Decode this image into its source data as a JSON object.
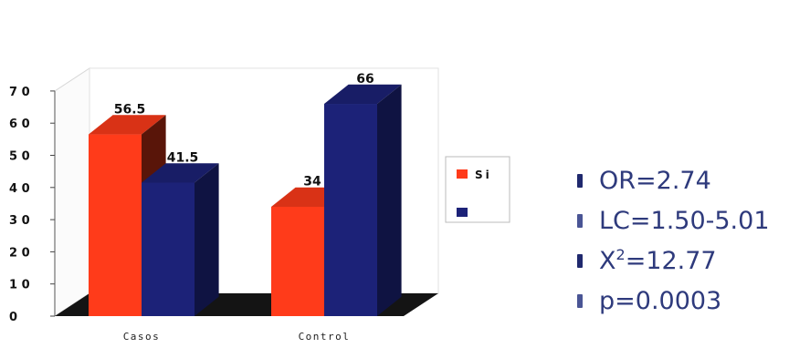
{
  "chart_data": {
    "type": "bar",
    "categories": [
      "Casos",
      "Control"
    ],
    "category_labels": [
      "Casos",
      "Control"
    ],
    "series": [
      {
        "name": "Si",
        "color": "#ff3b1a",
        "values": [
          56.5,
          34
        ]
      },
      {
        "name": "",
        "color": "#1c2278",
        "values": [
          41.5,
          66
        ]
      }
    ],
    "data_labels": [
      [
        "56.5",
        "34"
      ],
      [
        "41.5",
        "66"
      ]
    ],
    "ylim": [
      0,
      70
    ],
    "y_ticks": [
      0,
      10,
      20,
      30,
      40,
      50,
      60,
      70
    ],
    "y_tick_labels": [
      "0",
      "1 0",
      "2 0",
      "3 0",
      "4 0",
      "5 0",
      "6 0",
      "7 0"
    ],
    "legend_position": "right",
    "grid": false
  },
  "stats": {
    "or": "OR=2.74",
    "lc": "LC=1.50-5.01",
    "x2_base": "X",
    "x2_sup": "2",
    "x2_value": "=12.77",
    "p": "p=0.0003"
  }
}
